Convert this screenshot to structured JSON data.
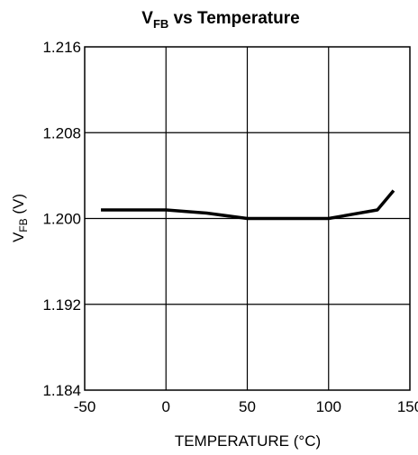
{
  "chart_data": {
    "type": "line",
    "title": {
      "main": "V",
      "sub": "FB",
      "rest": " vs Temperature"
    },
    "xlabel": "TEMPERATURE (°C)",
    "ylabel": {
      "main": "V",
      "sub": "FB",
      "rest": " (V)"
    },
    "xlim": [
      -50,
      150
    ],
    "ylim": [
      1.184,
      1.216
    ],
    "x_ticks": [
      -50,
      0,
      50,
      100,
      150
    ],
    "x_tick_labels": [
      "-50",
      "0",
      "50",
      "100",
      "150"
    ],
    "y_ticks": [
      1.184,
      1.192,
      1.2,
      1.208,
      1.216
    ],
    "y_tick_labels": [
      "1.184",
      "1.192",
      "1.200",
      "1.208",
      "1.216"
    ],
    "grid": true,
    "series": [
      {
        "x": [
          -40,
          0,
          25,
          50,
          75,
          100,
          130,
          140
        ],
        "y": [
          1.2008,
          1.2008,
          1.2005,
          1.2,
          1.2,
          1.2,
          1.2008,
          1.2026
        ]
      }
    ]
  }
}
